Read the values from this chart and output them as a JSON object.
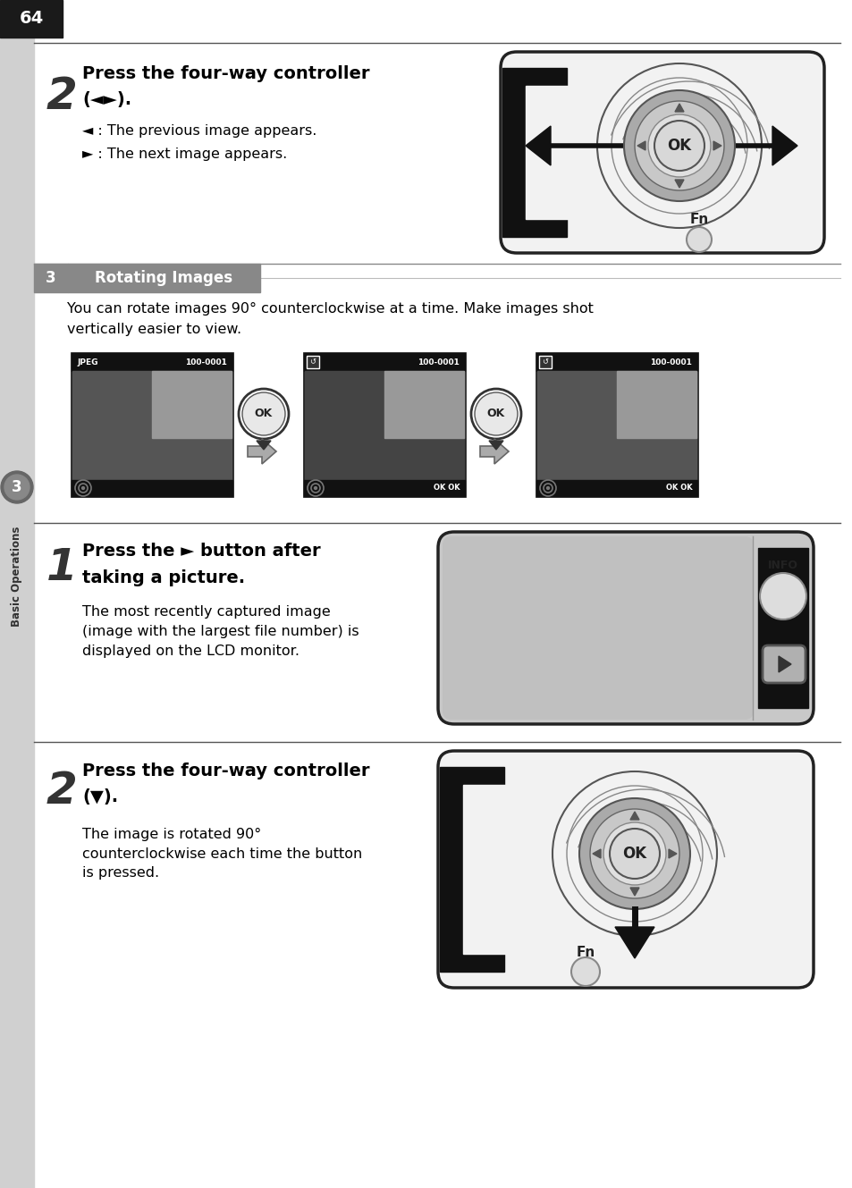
{
  "page_number": "64",
  "background_color": "#ffffff",
  "sidebar_color": "#d0d0d0",
  "page_num_bg": "#1a1a1a",
  "page_num_color": "#ffffff",
  "section3_bg": "#888888",
  "section3_text_color": "#ffffff",
  "section3_text": "Basic Operations",
  "section3_num": "3",
  "block1_step": "2",
  "block1_title_bold": "Press the four-way controller",
  "block1_title2": "(◄►).",
  "block1_bullet1_sym": "◄",
  "block1_bullet1_text": ": The previous image appears.",
  "block1_bullet2_sym": "►",
  "block1_bullet2_text": ": The next image appears.",
  "rotating_header": "Rotating Images",
  "rotating_desc1": "You can rotate images 90° counterclockwise at a time. Make images shot",
  "rotating_desc2": "vertically easier to view.",
  "block2_step": "1",
  "block2_title_bold1": "Press the ► button after",
  "block2_title_bold2": "taking a picture.",
  "block2_text1": "The most recently captured image",
  "block2_text2": "(image with the largest file number) is",
  "block2_text3": "displayed on the LCD monitor.",
  "block3_step": "2",
  "block3_title_bold1": "Press the four-way controller",
  "block3_title_bold2": "(▼).",
  "block3_text1": "The image is rotated 90°",
  "block3_text2": "counterclockwise each time the button",
  "block3_text3": "is pressed."
}
